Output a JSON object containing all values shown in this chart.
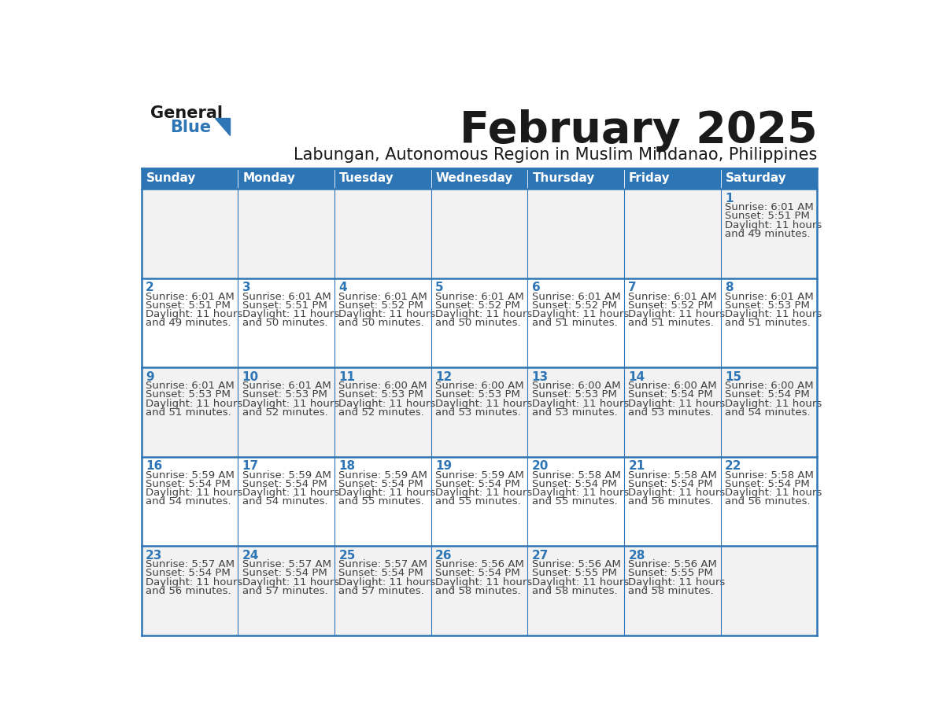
{
  "title": "February 2025",
  "subtitle": "Labungan, Autonomous Region in Muslim Mindanao, Philippines",
  "header_bg": "#2E75B6",
  "header_text_color": "#FFFFFF",
  "cell_bg_odd": "#F2F2F2",
  "cell_bg_even": "#FFFFFF",
  "border_color": "#2E75B6",
  "day_headers": [
    "Sunday",
    "Monday",
    "Tuesday",
    "Wednesday",
    "Thursday",
    "Friday",
    "Saturday"
  ],
  "title_color": "#1a1a1a",
  "subtitle_color": "#1a1a1a",
  "day_number_color": "#2E75B6",
  "cell_text_color": "#404040",
  "logo_general_color": "#1a1a1a",
  "logo_blue_color": "#2E75B6",
  "calendar_data": [
    [
      null,
      null,
      null,
      null,
      null,
      null,
      {
        "day": 1,
        "sunrise": "6:01 AM",
        "sunset": "5:51 PM",
        "daylight": "11 hours",
        "daylight2": "and 49 minutes."
      }
    ],
    [
      {
        "day": 2,
        "sunrise": "6:01 AM",
        "sunset": "5:51 PM",
        "daylight": "11 hours",
        "daylight2": "and 49 minutes."
      },
      {
        "day": 3,
        "sunrise": "6:01 AM",
        "sunset": "5:51 PM",
        "daylight": "11 hours",
        "daylight2": "and 50 minutes."
      },
      {
        "day": 4,
        "sunrise": "6:01 AM",
        "sunset": "5:52 PM",
        "daylight": "11 hours",
        "daylight2": "and 50 minutes."
      },
      {
        "day": 5,
        "sunrise": "6:01 AM",
        "sunset": "5:52 PM",
        "daylight": "11 hours",
        "daylight2": "and 50 minutes."
      },
      {
        "day": 6,
        "sunrise": "6:01 AM",
        "sunset": "5:52 PM",
        "daylight": "11 hours",
        "daylight2": "and 51 minutes."
      },
      {
        "day": 7,
        "sunrise": "6:01 AM",
        "sunset": "5:52 PM",
        "daylight": "11 hours",
        "daylight2": "and 51 minutes."
      },
      {
        "day": 8,
        "sunrise": "6:01 AM",
        "sunset": "5:53 PM",
        "daylight": "11 hours",
        "daylight2": "and 51 minutes."
      }
    ],
    [
      {
        "day": 9,
        "sunrise": "6:01 AM",
        "sunset": "5:53 PM",
        "daylight": "11 hours",
        "daylight2": "and 51 minutes."
      },
      {
        "day": 10,
        "sunrise": "6:01 AM",
        "sunset": "5:53 PM",
        "daylight": "11 hours",
        "daylight2": "and 52 minutes."
      },
      {
        "day": 11,
        "sunrise": "6:00 AM",
        "sunset": "5:53 PM",
        "daylight": "11 hours",
        "daylight2": "and 52 minutes."
      },
      {
        "day": 12,
        "sunrise": "6:00 AM",
        "sunset": "5:53 PM",
        "daylight": "11 hours",
        "daylight2": "and 53 minutes."
      },
      {
        "day": 13,
        "sunrise": "6:00 AM",
        "sunset": "5:53 PM",
        "daylight": "11 hours",
        "daylight2": "and 53 minutes."
      },
      {
        "day": 14,
        "sunrise": "6:00 AM",
        "sunset": "5:54 PM",
        "daylight": "11 hours",
        "daylight2": "and 53 minutes."
      },
      {
        "day": 15,
        "sunrise": "6:00 AM",
        "sunset": "5:54 PM",
        "daylight": "11 hours",
        "daylight2": "and 54 minutes."
      }
    ],
    [
      {
        "day": 16,
        "sunrise": "5:59 AM",
        "sunset": "5:54 PM",
        "daylight": "11 hours",
        "daylight2": "and 54 minutes."
      },
      {
        "day": 17,
        "sunrise": "5:59 AM",
        "sunset": "5:54 PM",
        "daylight": "11 hours",
        "daylight2": "and 54 minutes."
      },
      {
        "day": 18,
        "sunrise": "5:59 AM",
        "sunset": "5:54 PM",
        "daylight": "11 hours",
        "daylight2": "and 55 minutes."
      },
      {
        "day": 19,
        "sunrise": "5:59 AM",
        "sunset": "5:54 PM",
        "daylight": "11 hours",
        "daylight2": "and 55 minutes."
      },
      {
        "day": 20,
        "sunrise": "5:58 AM",
        "sunset": "5:54 PM",
        "daylight": "11 hours",
        "daylight2": "and 55 minutes."
      },
      {
        "day": 21,
        "sunrise": "5:58 AM",
        "sunset": "5:54 PM",
        "daylight": "11 hours",
        "daylight2": "and 56 minutes."
      },
      {
        "day": 22,
        "sunrise": "5:58 AM",
        "sunset": "5:54 PM",
        "daylight": "11 hours",
        "daylight2": "and 56 minutes."
      }
    ],
    [
      {
        "day": 23,
        "sunrise": "5:57 AM",
        "sunset": "5:54 PM",
        "daylight": "11 hours",
        "daylight2": "and 56 minutes."
      },
      {
        "day": 24,
        "sunrise": "5:57 AM",
        "sunset": "5:54 PM",
        "daylight": "11 hours",
        "daylight2": "and 57 minutes."
      },
      {
        "day": 25,
        "sunrise": "5:57 AM",
        "sunset": "5:54 PM",
        "daylight": "11 hours",
        "daylight2": "and 57 minutes."
      },
      {
        "day": 26,
        "sunrise": "5:56 AM",
        "sunset": "5:54 PM",
        "daylight": "11 hours",
        "daylight2": "and 58 minutes."
      },
      {
        "day": 27,
        "sunrise": "5:56 AM",
        "sunset": "5:55 PM",
        "daylight": "11 hours",
        "daylight2": "and 58 minutes."
      },
      {
        "day": 28,
        "sunrise": "5:56 AM",
        "sunset": "5:55 PM",
        "daylight": "11 hours",
        "daylight2": "and 58 minutes."
      },
      null
    ]
  ]
}
